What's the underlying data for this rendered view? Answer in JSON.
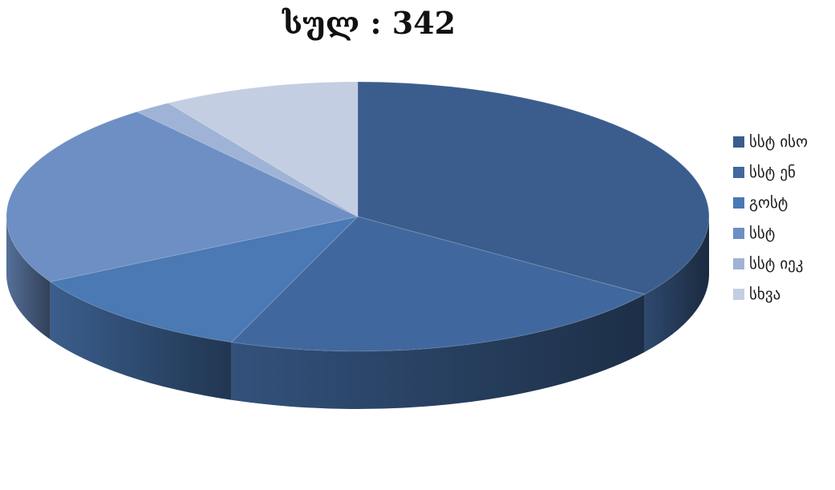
{
  "chart_data": {
    "type": "pie",
    "title": "სულ : 342",
    "style": "3d-exploded-none",
    "legend_position": "right",
    "series": [
      {
        "name": "სსტ ისო",
        "value": 119,
        "color": "#3b5d8d"
      },
      {
        "name": "სსტ ენ",
        "value": 72,
        "color": "#41689e"
      },
      {
        "name": "გოსტ",
        "value": 38,
        "color": "#4a79b3"
      },
      {
        "name": "სსტ",
        "value": 76,
        "color": "#6d8fc3"
      },
      {
        "name": "სსტ იეკ",
        "value": 6,
        "color": "#9fb3d6"
      },
      {
        "name": "სხვა",
        "value": 31,
        "color": "#c3cee2"
      }
    ]
  }
}
